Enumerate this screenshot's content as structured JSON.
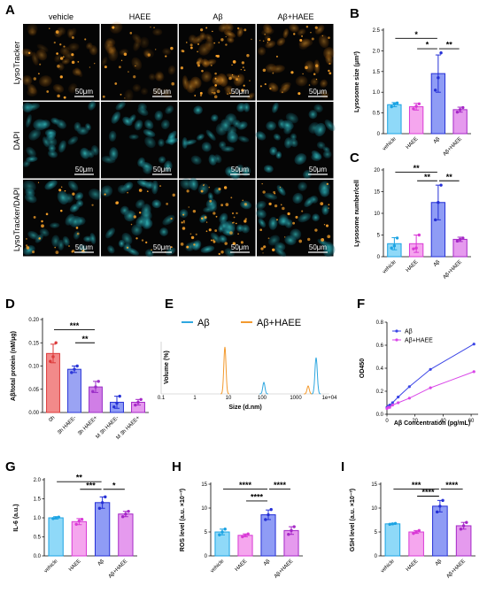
{
  "micro": {
    "letter": "A",
    "columns": [
      "vehicle",
      "HAEE",
      "Aβ",
      "Aβ+HAEE"
    ],
    "rows": [
      "LysoTracker",
      "DAPI",
      "LysoTracker/DAPI"
    ],
    "scale_label": "50μm"
  },
  "chart_data": [
    {
      "id": "B",
      "type": "bar",
      "letter": "B",
      "categories": [
        "vehicle",
        "HAEE",
        "Aβ",
        "Aβ+HAEE"
      ],
      "values": [
        0.7,
        0.65,
        1.45,
        0.58
      ],
      "errors": [
        0.05,
        0.08,
        0.45,
        0.06
      ],
      "points": [
        [
          0.65,
          0.72,
          0.74
        ],
        [
          0.6,
          0.66,
          0.72
        ],
        [
          1.05,
          1.35,
          1.95
        ],
        [
          0.52,
          0.58,
          0.63
        ]
      ],
      "ylabel": "Lysosome size (μm²)",
      "ylim": [
        0,
        2.5
      ],
      "yticks": [
        0,
        0.5,
        1,
        1.5,
        2,
        2.5
      ],
      "ytick_labels": [
        "0",
        "0.5",
        "1.0",
        "1.5",
        "2.0",
        "2.5"
      ],
      "sig": [
        {
          "a": 0,
          "b": 2,
          "label": "*",
          "level": 2.3
        },
        {
          "a": 1,
          "b": 2,
          "label": "*",
          "level": 2.05
        },
        {
          "a": 2,
          "b": 3,
          "label": "**",
          "level": 2.05
        }
      ]
    },
    {
      "id": "C",
      "type": "bar",
      "letter": "C",
      "categories": [
        "vehicle",
        "HAEE",
        "Aβ",
        "Aβ+HAEE"
      ],
      "values": [
        3.0,
        3.0,
        12.5,
        4.0
      ],
      "errors": [
        1.4,
        2.0,
        4.0,
        0.5
      ],
      "points": [
        [
          2.0,
          2.5,
          4.3
        ],
        [
          1.8,
          2.0,
          5.0
        ],
        [
          8.5,
          12.5,
          16.5
        ],
        [
          3.6,
          4.0,
          4.3
        ]
      ],
      "ylabel": "Lysosome number/cell",
      "ylim": [
        0,
        20
      ],
      "yticks": [
        0,
        5,
        10,
        15,
        20
      ],
      "ytick_labels": [
        "0",
        "5",
        "10",
        "15",
        "20"
      ],
      "sig": [
        {
          "a": 0,
          "b": 2,
          "label": "**",
          "level": 19.5
        },
        {
          "a": 1,
          "b": 2,
          "label": "**",
          "level": 17.5
        },
        {
          "a": 2,
          "b": 3,
          "label": "**",
          "level": 17.5
        }
      ]
    },
    {
      "id": "D",
      "type": "bar",
      "letter": "D",
      "categories": [
        "0h",
        "3h HAEE-",
        "3h HAEE+",
        "M 3h HAEE-",
        "M 3h HAEE+"
      ],
      "values": [
        0.127,
        0.093,
        0.055,
        0.022,
        0.022
      ],
      "errors": [
        0.02,
        0.007,
        0.012,
        0.013,
        0.006
      ],
      "points": [
        [
          0.11,
          0.12,
          0.15
        ],
        [
          0.086,
          0.093,
          0.1
        ],
        [
          0.045,
          0.055,
          0.067
        ],
        [
          0.012,
          0.02,
          0.035
        ],
        [
          0.016,
          0.022,
          0.028
        ]
      ],
      "ylabel": "Aβ/total protein (nM/μg)",
      "ylim": [
        0,
        0.2
      ],
      "yticks": [
        0,
        0.05,
        0.1,
        0.15,
        0.2
      ],
      "ytick_labels": [
        "0.00",
        "0.05",
        "0.10",
        "0.15",
        "0.20"
      ],
      "sig": [
        {
          "a": 0,
          "b": 2,
          "label": "***",
          "level": 0.178
        },
        {
          "a": 1,
          "b": 2,
          "label": "**",
          "level": 0.15
        }
      ]
    },
    {
      "id": "E",
      "type": "line",
      "letter": "E",
      "xlabel": "Size (d.nm)",
      "ylabel": "Volume (%)",
      "xticks": [
        "0.1",
        "1",
        "10",
        "100",
        "1000",
        "1e+04"
      ],
      "series": [
        {
          "name": "Aβ",
          "color": "#2ea7e0"
        },
        {
          "name": "Aβ+HAEE",
          "color": "#f39a2e"
        }
      ]
    },
    {
      "id": "F",
      "type": "line",
      "letter": "F",
      "xlabel": "Aβ Concentration (pg/mL)",
      "ylabel": "OD450",
      "xlim": [
        0,
        65
      ],
      "xticks": [
        0,
        20,
        40,
        60
      ],
      "ylim": [
        0,
        0.8
      ],
      "yticks": [
        0,
        0.2,
        0.4,
        0.6,
        0.8
      ],
      "ytick_labels": [
        "0.0",
        "0.2",
        "0.4",
        "0.6",
        "0.8"
      ],
      "series": [
        {
          "name": "Aβ",
          "color": "#3b45e6",
          "x": [
            0,
            1,
            2,
            4,
            8,
            16,
            31,
            62
          ],
          "y": [
            0.06,
            0.07,
            0.08,
            0.1,
            0.15,
            0.24,
            0.39,
            0.61
          ]
        },
        {
          "name": "Aβ+HAEE",
          "color": "#d946e8",
          "x": [
            0,
            1,
            2,
            4,
            8,
            16,
            31,
            62
          ],
          "y": [
            0.05,
            0.06,
            0.06,
            0.08,
            0.1,
            0.14,
            0.23,
            0.37
          ]
        }
      ]
    },
    {
      "id": "G",
      "type": "bar",
      "letter": "G",
      "categories": [
        "vehicle",
        "HAEE",
        "Aβ",
        "Aβ+HAEE"
      ],
      "values": [
        1.0,
        0.9,
        1.4,
        1.1
      ],
      "errors": [
        0.03,
        0.08,
        0.15,
        0.07
      ],
      "points": [
        [
          0.98,
          1.0,
          1.02
        ],
        [
          0.83,
          0.92,
          0.96
        ],
        [
          1.25,
          1.4,
          1.55
        ],
        [
          1.03,
          1.1,
          1.17
        ]
      ],
      "ylabel": "IL-6 (a.u.)",
      "ylim": [
        0,
        2.0
      ],
      "yticks": [
        0,
        0.5,
        1,
        1.5,
        2
      ],
      "ytick_labels": [
        "0.0",
        "0.5",
        "1.0",
        "1.5",
        "2.0"
      ],
      "sig": [
        {
          "a": 0,
          "b": 2,
          "label": "**",
          "level": 1.95
        },
        {
          "a": 1,
          "b": 2,
          "label": "***",
          "level": 1.75
        },
        {
          "a": 2,
          "b": 3,
          "label": "*",
          "level": 1.75
        }
      ]
    },
    {
      "id": "H",
      "type": "bar",
      "letter": "H",
      "categories": [
        "vehicle",
        "HAEE",
        "Aβ",
        "Aβ+HAEE"
      ],
      "values": [
        5.0,
        4.3,
        8.6,
        5.3
      ],
      "errors": [
        0.6,
        0.3,
        1.0,
        0.8
      ],
      "points": [
        [
          4.4,
          5.0,
          5.6
        ],
        [
          4.0,
          4.3,
          4.6
        ],
        [
          7.6,
          8.6,
          9.7
        ],
        [
          4.5,
          5.3,
          6.1
        ]
      ],
      "ylabel": "ROS level (a.u. ×10⁻³)",
      "ylim": [
        0,
        15
      ],
      "yticks": [
        0,
        5,
        10,
        15
      ],
      "ytick_labels": [
        "0",
        "5",
        "10",
        "15"
      ],
      "sig": [
        {
          "a": 0,
          "b": 2,
          "label": "****",
          "level": 14.0
        },
        {
          "a": 2,
          "b": 3,
          "label": "****",
          "level": 14.0
        },
        {
          "a": 1,
          "b": 2,
          "label": "****",
          "level": 11.5
        }
      ]
    },
    {
      "id": "I",
      "type": "bar",
      "letter": "I",
      "categories": [
        "vehicle",
        "HAEE",
        "Aβ",
        "Aβ+HAEE"
      ],
      "values": [
        6.7,
        5.0,
        10.4,
        6.3
      ],
      "errors": [
        0.1,
        0.3,
        1.2,
        0.7
      ],
      "points": [
        [
          6.6,
          6.7,
          6.8
        ],
        [
          4.7,
          5.0,
          5.3
        ],
        [
          9.2,
          10.4,
          11.6
        ],
        [
          5.6,
          6.3,
          7.0
        ]
      ],
      "ylabel": "GSH level (a.u. ×10⁻³)",
      "ylim": [
        0,
        15
      ],
      "yticks": [
        0,
        5,
        10,
        15
      ],
      "ytick_labels": [
        "0",
        "5",
        "10",
        "15"
      ],
      "sig": [
        {
          "a": 0,
          "b": 2,
          "label": "***",
          "level": 14.0
        },
        {
          "a": 2,
          "b": 3,
          "label": "****",
          "level": 14.0
        },
        {
          "a": 1,
          "b": 2,
          "label": "****",
          "level": 12.5
        }
      ]
    }
  ],
  "colors": {
    "vehicle": {
      "fill": "#8fd9f8",
      "stroke": "#1ba3e3"
    },
    "HAEE": {
      "fill": "#f5a6ee",
      "stroke": "#d93ad6"
    },
    "Aβ": {
      "fill": "#8f9cf5",
      "stroke": "#2530d6"
    },
    "Aβ+HAEE": {
      "fill": "#e59aee",
      "stroke": "#a527c7"
    },
    "D": [
      {
        "fill": "#f28a8a",
        "stroke": "#dd3b3b"
      },
      {
        "fill": "#9aa3f3",
        "stroke": "#2a36d8"
      },
      {
        "fill": "#d07ee6",
        "stroke": "#9b2fc7"
      },
      {
        "fill": "#8f9cf5",
        "stroke": "#2530d6"
      },
      {
        "fill": "#e59aee",
        "stroke": "#a527c7"
      }
    ]
  }
}
